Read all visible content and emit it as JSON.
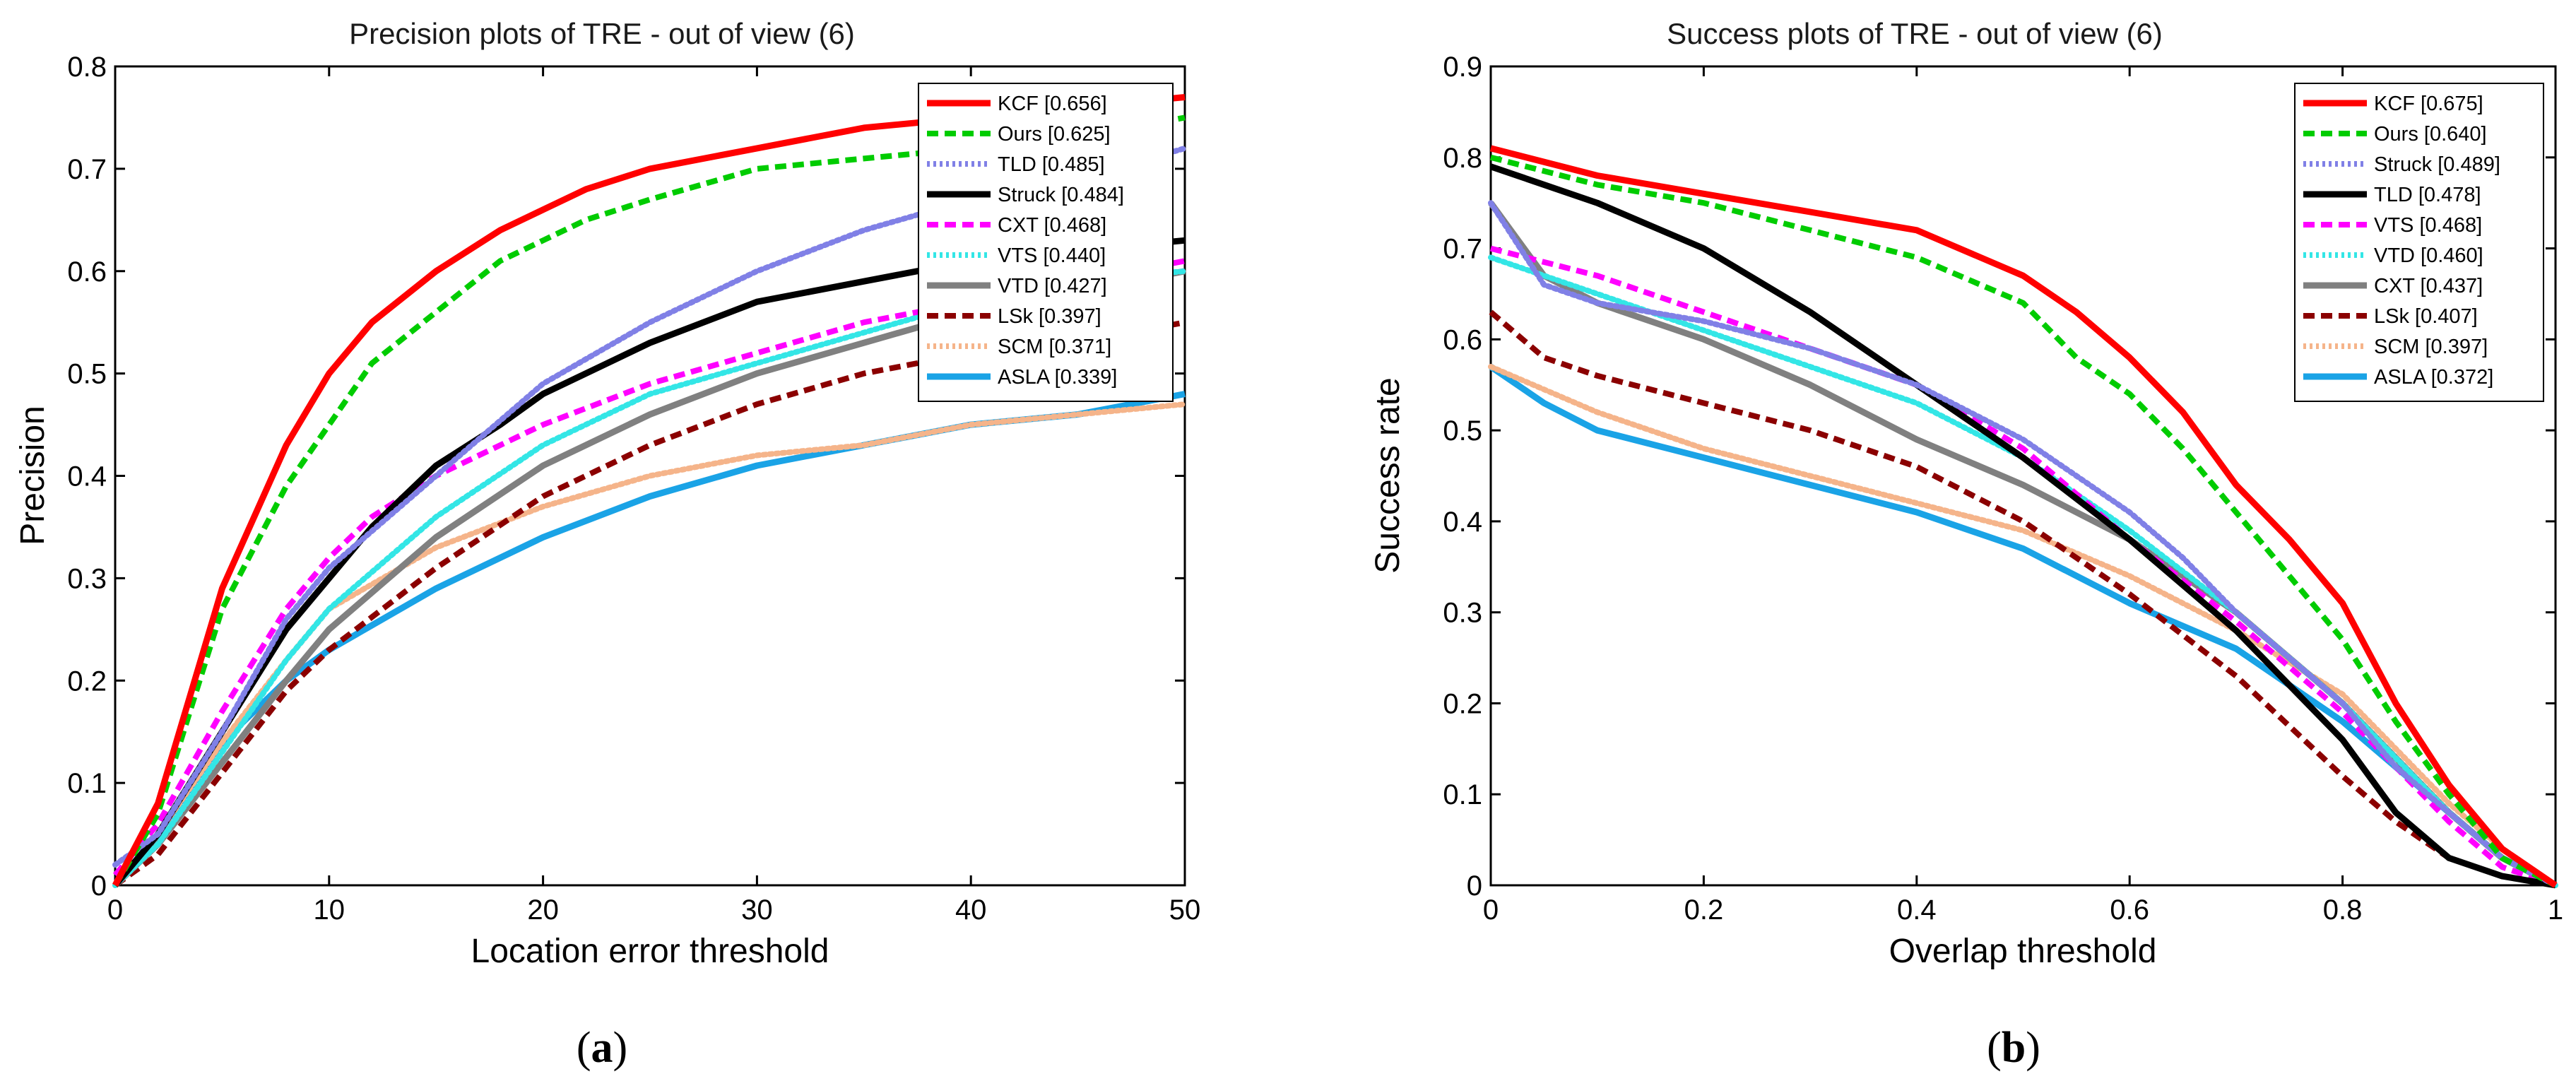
{
  "chart_data": [
    {
      "type": "line",
      "title": "Precision plots of TRE - out of view (6)",
      "xlabel": "Location error threshold",
      "ylabel": "Precision",
      "xlim": [
        0,
        50
      ],
      "ylim": [
        0,
        0.8
      ],
      "xticks": [
        0,
        10,
        20,
        30,
        40,
        50
      ],
      "yticks": [
        0,
        0.1,
        0.2,
        0.3,
        0.4,
        0.5,
        0.6,
        0.7,
        0.8
      ],
      "xtick_labels": [
        "0",
        "10",
        "20",
        "30",
        "40",
        "50"
      ],
      "ytick_labels": [
        "0",
        "0.1",
        "0.2",
        "0.3",
        "0.4",
        "0.5",
        "0.6",
        "0.7",
        "0.8"
      ],
      "legend_position": "top-right",
      "caption": {
        "open": "(",
        "letter": "a",
        "close": ")"
      },
      "series": [
        {
          "name": "KCF [0.656]",
          "color": "#ff0000",
          "style": "solid",
          "x": [
            0,
            2,
            5,
            8,
            10,
            12,
            15,
            18,
            20,
            22,
            25,
            30,
            35,
            40,
            45,
            50
          ],
          "values": [
            0,
            0.08,
            0.29,
            0.43,
            0.5,
            0.55,
            0.6,
            0.64,
            0.66,
            0.68,
            0.7,
            0.72,
            0.74,
            0.75,
            0.76,
            0.77
          ]
        },
        {
          "name": "Ours [0.625]",
          "color": "#00cc00",
          "style": "dashed",
          "x": [
            0,
            2,
            5,
            8,
            10,
            12,
            15,
            18,
            20,
            22,
            25,
            30,
            35,
            40,
            45,
            50
          ],
          "values": [
            0,
            0.07,
            0.27,
            0.39,
            0.45,
            0.51,
            0.56,
            0.61,
            0.63,
            0.65,
            0.67,
            0.7,
            0.71,
            0.72,
            0.73,
            0.75
          ]
        },
        {
          "name": "TLD [0.485]",
          "color": "#8080e6",
          "style": "dotted",
          "x": [
            0,
            2,
            5,
            8,
            10,
            15,
            20,
            25,
            30,
            35,
            40,
            45,
            50
          ],
          "values": [
            0.02,
            0.05,
            0.15,
            0.26,
            0.31,
            0.4,
            0.49,
            0.55,
            0.6,
            0.64,
            0.67,
            0.69,
            0.72
          ]
        },
        {
          "name": "Struck [0.484]",
          "color": "#000000",
          "style": "solid",
          "x": [
            0,
            2,
            5,
            8,
            10,
            12,
            15,
            18,
            20,
            25,
            30,
            35,
            40,
            45,
            50
          ],
          "values": [
            0,
            0.05,
            0.15,
            0.25,
            0.3,
            0.35,
            0.41,
            0.45,
            0.48,
            0.53,
            0.57,
            0.59,
            0.61,
            0.62,
            0.63
          ]
        },
        {
          "name": "CXT [0.468]",
          "color": "#ff00ff",
          "style": "dashed",
          "x": [
            0,
            2,
            5,
            8,
            10,
            12,
            15,
            20,
            25,
            30,
            35,
            40,
            45,
            50
          ],
          "values": [
            0.01,
            0.06,
            0.17,
            0.27,
            0.32,
            0.36,
            0.4,
            0.45,
            0.49,
            0.52,
            0.55,
            0.57,
            0.59,
            0.61
          ]
        },
        {
          "name": "VTS [0.440]",
          "color": "#33e6e6",
          "style": "dotted",
          "x": [
            0,
            2,
            5,
            8,
            10,
            15,
            20,
            25,
            30,
            35,
            40,
            45,
            50
          ],
          "values": [
            0,
            0.04,
            0.13,
            0.22,
            0.27,
            0.36,
            0.43,
            0.48,
            0.51,
            0.54,
            0.57,
            0.59,
            0.6
          ]
        },
        {
          "name": "VTD [0.427]",
          "color": "#808080",
          "style": "solid",
          "x": [
            0,
            2,
            5,
            8,
            10,
            15,
            20,
            25,
            30,
            35,
            40,
            45,
            50
          ],
          "values": [
            0,
            0.04,
            0.12,
            0.2,
            0.25,
            0.34,
            0.41,
            0.46,
            0.5,
            0.53,
            0.56,
            0.58,
            0.6
          ]
        },
        {
          "name": "LSk [0.397]",
          "color": "#8b0000",
          "style": "dashed",
          "x": [
            0,
            2,
            5,
            8,
            10,
            15,
            20,
            25,
            30,
            35,
            40,
            45,
            50
          ],
          "values": [
            0,
            0.03,
            0.11,
            0.19,
            0.23,
            0.31,
            0.38,
            0.43,
            0.47,
            0.5,
            0.52,
            0.53,
            0.55
          ]
        },
        {
          "name": "SCM [0.371]",
          "color": "#f5b48a",
          "style": "dotted",
          "x": [
            0,
            2,
            5,
            8,
            10,
            15,
            20,
            25,
            30,
            35,
            40,
            45,
            50
          ],
          "values": [
            0,
            0.05,
            0.14,
            0.22,
            0.27,
            0.33,
            0.37,
            0.4,
            0.42,
            0.43,
            0.45,
            0.46,
            0.47
          ]
        },
        {
          "name": "ASLA [0.339]",
          "color": "#1aa3e6",
          "style": "solid",
          "x": [
            0,
            2,
            5,
            8,
            10,
            15,
            20,
            25,
            30,
            35,
            40,
            45,
            50
          ],
          "values": [
            0,
            0.05,
            0.14,
            0.2,
            0.23,
            0.29,
            0.34,
            0.38,
            0.41,
            0.43,
            0.45,
            0.46,
            0.48
          ]
        }
      ]
    },
    {
      "type": "line",
      "title": "Success plots of TRE - out of view (6)",
      "xlabel": "Overlap threshold",
      "ylabel": "Success rate",
      "xlim": [
        0,
        1
      ],
      "ylim": [
        0,
        0.9
      ],
      "xticks": [
        0,
        0.2,
        0.4,
        0.6,
        0.8,
        1
      ],
      "yticks": [
        0,
        0.1,
        0.2,
        0.3,
        0.4,
        0.5,
        0.6,
        0.7,
        0.8,
        0.9
      ],
      "xtick_labels": [
        "0",
        "0.2",
        "0.4",
        "0.6",
        "0.8",
        "1"
      ],
      "ytick_labels": [
        "0",
        "0.1",
        "0.2",
        "0.3",
        "0.4",
        "0.5",
        "0.6",
        "0.7",
        "0.8",
        "0.9"
      ],
      "legend_position": "top-right",
      "caption": {
        "open": "(",
        "letter": "b",
        "close": ")"
      },
      "series": [
        {
          "name": "KCF [0.675]",
          "color": "#ff0000",
          "style": "solid",
          "x": [
            0,
            0.1,
            0.2,
            0.3,
            0.4,
            0.5,
            0.55,
            0.6,
            0.65,
            0.7,
            0.75,
            0.8,
            0.85,
            0.9,
            0.95,
            1
          ],
          "values": [
            0.81,
            0.78,
            0.76,
            0.74,
            0.72,
            0.67,
            0.63,
            0.58,
            0.52,
            0.44,
            0.38,
            0.31,
            0.2,
            0.11,
            0.04,
            0
          ]
        },
        {
          "name": "Ours [0.640]",
          "color": "#00cc00",
          "style": "dashed",
          "x": [
            0,
            0.1,
            0.2,
            0.3,
            0.4,
            0.5,
            0.55,
            0.6,
            0.65,
            0.7,
            0.75,
            0.8,
            0.85,
            0.9,
            0.95,
            1
          ],
          "values": [
            0.8,
            0.77,
            0.75,
            0.72,
            0.69,
            0.64,
            0.58,
            0.54,
            0.48,
            0.41,
            0.34,
            0.27,
            0.18,
            0.1,
            0.03,
            0
          ]
        },
        {
          "name": "Struck [0.489]",
          "color": "#8080e6",
          "style": "dotted",
          "x": [
            0,
            0.05,
            0.1,
            0.2,
            0.3,
            0.4,
            0.5,
            0.6,
            0.65,
            0.7,
            0.8,
            0.85,
            0.9,
            0.95,
            1
          ],
          "values": [
            0.75,
            0.66,
            0.64,
            0.62,
            0.59,
            0.55,
            0.49,
            0.41,
            0.36,
            0.3,
            0.2,
            0.13,
            0.08,
            0.03,
            0
          ]
        },
        {
          "name": "TLD [0.478]",
          "color": "#000000",
          "style": "solid",
          "x": [
            0,
            0.1,
            0.2,
            0.3,
            0.4,
            0.5,
            0.6,
            0.7,
            0.8,
            0.85,
            0.9,
            0.95,
            1
          ],
          "values": [
            0.79,
            0.75,
            0.7,
            0.63,
            0.55,
            0.47,
            0.38,
            0.28,
            0.16,
            0.08,
            0.03,
            0.01,
            0
          ]
        },
        {
          "name": "VTS [0.468]",
          "color": "#ff00ff",
          "style": "dashed",
          "x": [
            0,
            0.1,
            0.2,
            0.3,
            0.4,
            0.5,
            0.6,
            0.7,
            0.8,
            0.85,
            0.9,
            0.95,
            1
          ],
          "values": [
            0.7,
            0.67,
            0.63,
            0.59,
            0.55,
            0.48,
            0.38,
            0.29,
            0.19,
            0.13,
            0.07,
            0.02,
            0
          ]
        },
        {
          "name": "VTD [0.460]",
          "color": "#33e6e6",
          "style": "dotted",
          "x": [
            0,
            0.1,
            0.2,
            0.3,
            0.4,
            0.5,
            0.6,
            0.7,
            0.8,
            0.85,
            0.9,
            0.95,
            1
          ],
          "values": [
            0.69,
            0.65,
            0.61,
            0.57,
            0.53,
            0.47,
            0.39,
            0.3,
            0.2,
            0.14,
            0.08,
            0.03,
            0
          ]
        },
        {
          "name": "CXT [0.437]",
          "color": "#808080",
          "style": "solid",
          "x": [
            0,
            0.05,
            0.1,
            0.2,
            0.3,
            0.4,
            0.5,
            0.6,
            0.7,
            0.8,
            0.85,
            0.9,
            0.95,
            1
          ],
          "values": [
            0.75,
            0.67,
            0.64,
            0.6,
            0.55,
            0.49,
            0.44,
            0.38,
            0.3,
            0.2,
            0.14,
            0.08,
            0.03,
            0
          ]
        },
        {
          "name": "LSk [0.407]",
          "color": "#8b0000",
          "style": "dashed",
          "x": [
            0,
            0.05,
            0.1,
            0.2,
            0.3,
            0.4,
            0.5,
            0.6,
            0.7,
            0.8,
            0.85,
            0.9,
            0.95,
            1
          ],
          "values": [
            0.63,
            0.58,
            0.56,
            0.53,
            0.5,
            0.46,
            0.4,
            0.32,
            0.23,
            0.12,
            0.07,
            0.03,
            0.01,
            0
          ]
        },
        {
          "name": "SCM [0.397]",
          "color": "#f5b48a",
          "style": "dotted",
          "x": [
            0,
            0.1,
            0.2,
            0.3,
            0.4,
            0.5,
            0.6,
            0.7,
            0.8,
            0.85,
            0.9,
            0.95,
            1
          ],
          "values": [
            0.57,
            0.52,
            0.48,
            0.45,
            0.42,
            0.39,
            0.34,
            0.28,
            0.21,
            0.15,
            0.09,
            0.04,
            0
          ]
        },
        {
          "name": "ASLA [0.372]",
          "color": "#1aa3e6",
          "style": "solid",
          "x": [
            0,
            0.05,
            0.1,
            0.2,
            0.3,
            0.4,
            0.5,
            0.6,
            0.7,
            0.8,
            0.85,
            0.9,
            0.95,
            1
          ],
          "values": [
            0.57,
            0.53,
            0.5,
            0.47,
            0.44,
            0.41,
            0.37,
            0.31,
            0.26,
            0.18,
            0.13,
            0.08,
            0.03,
            0
          ]
        }
      ]
    }
  ]
}
